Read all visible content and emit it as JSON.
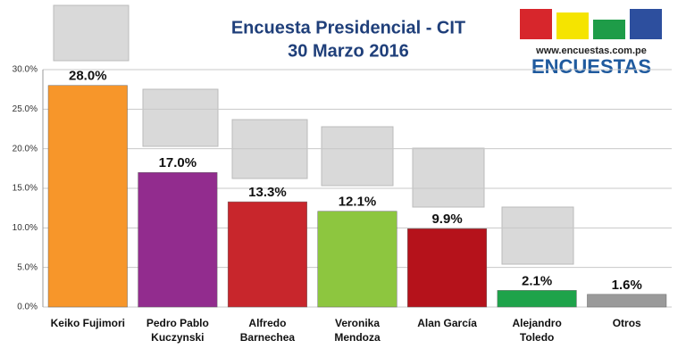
{
  "chart_data": {
    "type": "bar",
    "title": "Encuesta Presidencial - CIT",
    "subtitle": "30 Marzo 2016",
    "logo_url": "www.encuestas.com.pe",
    "logo_text": "ENCUESTAS",
    "categories": [
      "Keiko Fujimori",
      "Pedro Pablo Kuczynski",
      "Alfredo Barnechea",
      "Veronika Mendoza",
      "Alan García",
      "Alejandro Toledo",
      "Otros"
    ],
    "values": [
      28.0,
      17.0,
      13.3,
      12.1,
      9.9,
      2.1,
      1.6
    ],
    "value_labels": [
      "28.0%",
      "17.0%",
      "13.3%",
      "12.1%",
      "9.9%",
      "2.1%",
      "1.6%"
    ],
    "colors": [
      "#f7962a",
      "#922c8e",
      "#c8262c",
      "#8dc63f",
      "#b5121b",
      "#1ea34a",
      "#9a9a9a"
    ],
    "ylim": [
      0,
      30
    ],
    "yticks": [
      {
        "value": 0,
        "label": "0.0%"
      },
      {
        "value": 5,
        "label": "5.0%"
      },
      {
        "value": 10,
        "label": "10.0%"
      },
      {
        "value": 15,
        "label": "15.0%"
      },
      {
        "value": 20,
        "label": "20.0%"
      },
      {
        "value": 25,
        "label": "25.0%"
      },
      {
        "value": 30,
        "label": "30.0%"
      }
    ],
    "grid": true
  }
}
